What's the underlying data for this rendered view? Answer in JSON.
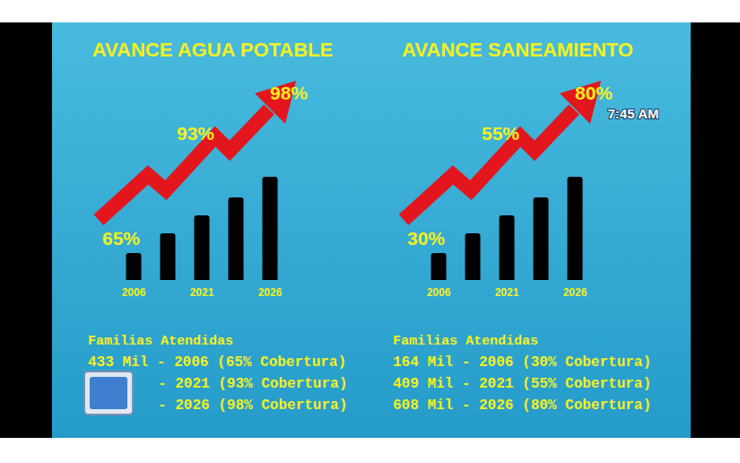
{
  "chart_data": [
    {
      "type": "bar",
      "title": "AVANCE AGUA POTABLE",
      "categories": [
        "2006",
        null,
        "2021",
        null,
        "2026"
      ],
      "values": [
        30,
        52,
        72,
        92,
        115
      ],
      "color": "#000000",
      "ylim": [
        0,
        120
      ],
      "tick_labels": "x",
      "arrow_labels": [
        "65%",
        "93%",
        "98%"
      ],
      "families_heading": "Familias Atendidas",
      "families_lines": [
        "433 Mil - 2006 (65% Cobertura)",
        "- 2021 (93% Cobertura)",
        "- 2026 (98% Cobertura)"
      ]
    },
    {
      "type": "bar",
      "title": "AVANCE SANEAMIENTO",
      "categories": [
        "2006",
        null,
        "2021",
        null,
        "2026"
      ],
      "values": [
        30,
        52,
        72,
        92,
        115
      ],
      "color": "#000000",
      "ylim": [
        0,
        120
      ],
      "tick_labels": "x",
      "arrow_labels": [
        "30%",
        "55%",
        "80%"
      ],
      "families_heading": "Familias Atendidas",
      "families_lines": [
        "164 Mil - 2006 (30% Cobertura)",
        "409 Mil - 2021 (55% Cobertura)",
        "608 Mil - 2026 (80% Cobertura)"
      ]
    }
  ],
  "overlay": {
    "timestamp": "7:45 AM"
  }
}
